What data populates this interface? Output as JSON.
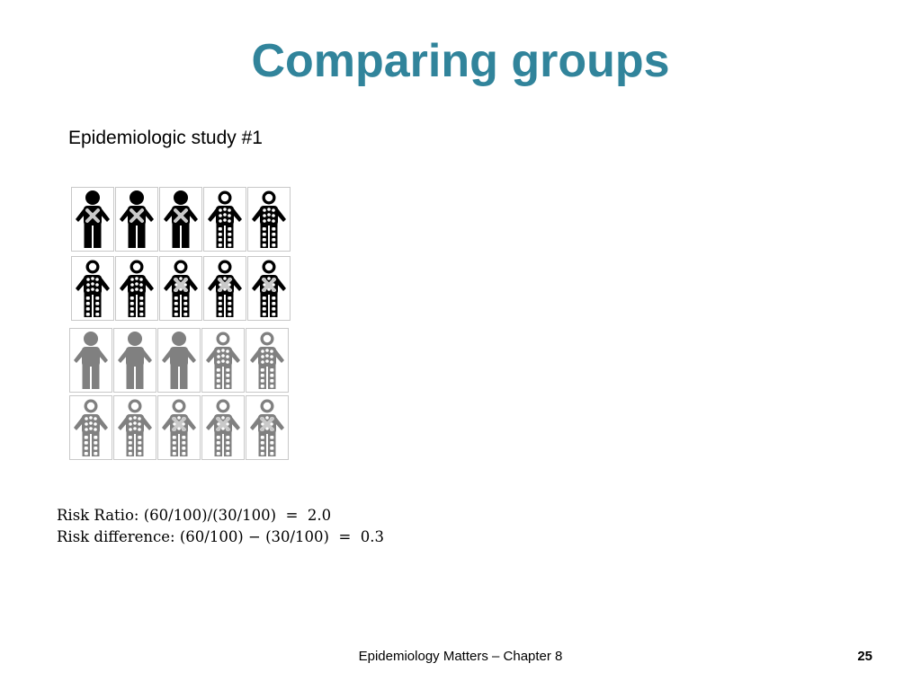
{
  "slide": {
    "title": "Comparing groups",
    "subtitle": "Epidemiologic study #1",
    "title_color": "#31849B",
    "formulas": [
      "Risk Ratio: (60/100)/(30/100)  =  2.0",
      "Risk difference: (60/100) − (30/100)  =  0.3"
    ],
    "footer": "Epidemiology Matters – Chapter 8",
    "page_number": "25"
  },
  "figure_grid": {
    "icon": "person-icon",
    "colors": {
      "black": "#000000",
      "gray": "#808080"
    },
    "rows": [
      [
        {
          "color": "black",
          "pattern": "solid",
          "cross": true
        },
        {
          "color": "black",
          "pattern": "solid",
          "cross": true
        },
        {
          "color": "black",
          "pattern": "solid",
          "cross": true
        },
        {
          "color": "black",
          "pattern": "dotted",
          "cross": false
        },
        {
          "color": "black",
          "pattern": "dotted",
          "cross": false
        }
      ],
      [
        {
          "color": "black",
          "pattern": "dotted",
          "cross": false
        },
        {
          "color": "black",
          "pattern": "dotted",
          "cross": false
        },
        {
          "color": "black",
          "pattern": "dotted",
          "cross": true
        },
        {
          "color": "black",
          "pattern": "dotted",
          "cross": true
        },
        {
          "color": "black",
          "pattern": "dotted",
          "cross": true
        }
      ],
      [
        {
          "color": "gray",
          "pattern": "solid",
          "cross": false
        },
        {
          "color": "gray",
          "pattern": "solid",
          "cross": false
        },
        {
          "color": "gray",
          "pattern": "solid",
          "cross": false
        },
        {
          "color": "gray",
          "pattern": "dotted",
          "cross": false
        },
        {
          "color": "gray",
          "pattern": "dotted",
          "cross": false
        }
      ],
      [
        {
          "color": "gray",
          "pattern": "dotted",
          "cross": false
        },
        {
          "color": "gray",
          "pattern": "dotted",
          "cross": false
        },
        {
          "color": "gray",
          "pattern": "dotted",
          "cross": true
        },
        {
          "color": "gray",
          "pattern": "dotted",
          "cross": true
        },
        {
          "color": "gray",
          "pattern": "dotted",
          "cross": true
        }
      ]
    ]
  }
}
